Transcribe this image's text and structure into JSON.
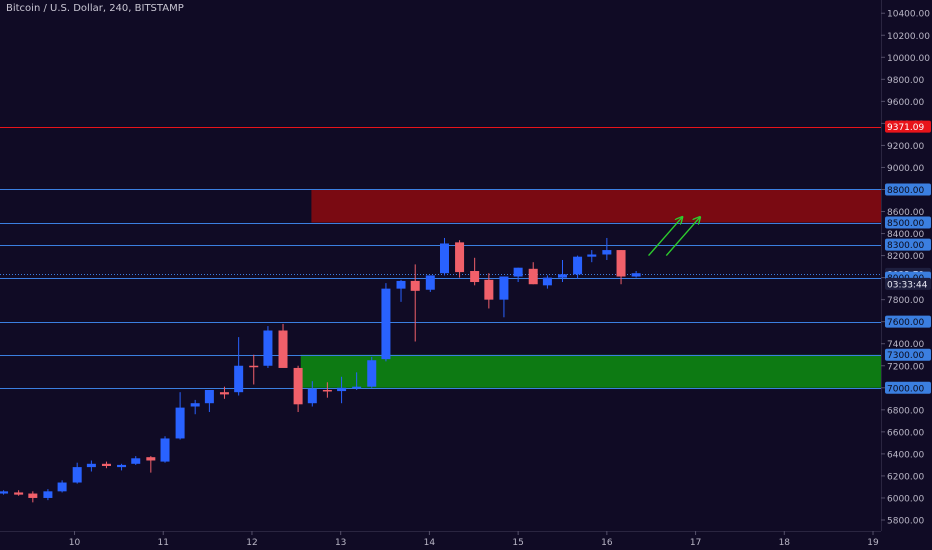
{
  "header": {
    "title": "Bitcoin / U.S. Dollar, 240, BITSTAMP"
  },
  "colors": {
    "background": "#100b25",
    "up": "#2962ff",
    "down": "#f0606a",
    "level_line": "#3b7fe0",
    "resistance_line": "#e8141a",
    "supply_zone": "#7a0a12",
    "demand_zone": "#0d7a13",
    "arrow": "#2dcc2d",
    "axis_text": "#b9b6c6"
  },
  "chart_data": {
    "type": "candlestick",
    "title": "Bitcoin / U.S. Dollar, 240, BITSTAMP",
    "x_axis": {
      "ticks": [
        10,
        11,
        12,
        13,
        14,
        15,
        16,
        17,
        18,
        19
      ],
      "range": [
        9.16,
        19.09
      ]
    },
    "y_axis": {
      "ticks": [
        5800,
        6000,
        6200,
        6400,
        6600,
        6800,
        7000,
        7200,
        7400,
        7600,
        7800,
        8000,
        8200,
        8400,
        8600,
        8800,
        9000,
        9200,
        9400,
        9600,
        9800,
        10000,
        10200,
        10400
      ],
      "tick_labels": [
        "5800.00",
        "6000.00",
        "6200.00",
        "6400.00",
        "6600.00",
        "6800.00",
        "7000.00",
        "7200.00",
        "7400.00",
        "7600.00",
        "7800.00",
        "8000.00",
        "8200.00",
        "8400.00",
        "8600.00",
        "8800.00",
        "9000.00",
        "9200.00",
        "9400.00",
        "9600.00",
        "9800.00",
        "10000.00",
        "10200.00",
        "10400.00"
      ],
      "range": [
        5700,
        10520
      ]
    },
    "candles": [
      {
        "t": 9.2,
        "o": 6040,
        "h": 6070,
        "l": 6030,
        "c": 6060
      },
      {
        "t": 9.37,
        "o": 6050,
        "h": 6070,
        "l": 6020,
        "c": 6030
      },
      {
        "t": 9.53,
        "o": 6040,
        "h": 6060,
        "l": 5960,
        "c": 6000
      },
      {
        "t": 9.7,
        "o": 6000,
        "h": 6080,
        "l": 5980,
        "c": 6060
      },
      {
        "t": 9.86,
        "o": 6060,
        "h": 6160,
        "l": 6050,
        "c": 6140
      },
      {
        "t": 10.03,
        "o": 6140,
        "h": 6320,
        "l": 6130,
        "c": 6280
      },
      {
        "t": 10.19,
        "o": 6280,
        "h": 6340,
        "l": 6240,
        "c": 6310
      },
      {
        "t": 10.36,
        "o": 6310,
        "h": 6330,
        "l": 6270,
        "c": 6290
      },
      {
        "t": 10.53,
        "o": 6280,
        "h": 6310,
        "l": 6250,
        "c": 6300
      },
      {
        "t": 10.69,
        "o": 6310,
        "h": 6380,
        "l": 6300,
        "c": 6360
      },
      {
        "t": 10.86,
        "o": 6370,
        "h": 6380,
        "l": 6230,
        "c": 6340
      },
      {
        "t": 11.02,
        "o": 6330,
        "h": 6560,
        "l": 6320,
        "c": 6540
      },
      {
        "t": 11.19,
        "o": 6540,
        "h": 6960,
        "l": 6530,
        "c": 6820
      },
      {
        "t": 11.36,
        "o": 6830,
        "h": 6890,
        "l": 6760,
        "c": 6860
      },
      {
        "t": 11.52,
        "o": 6860,
        "h": 6970,
        "l": 6780,
        "c": 6980
      },
      {
        "t": 11.69,
        "o": 6960,
        "h": 7010,
        "l": 6900,
        "c": 6940
      },
      {
        "t": 11.85,
        "o": 6960,
        "h": 7460,
        "l": 6930,
        "c": 7200
      },
      {
        "t": 12.02,
        "o": 7200,
        "h": 7300,
        "l": 7030,
        "c": 7190
      },
      {
        "t": 12.18,
        "o": 7200,
        "h": 7560,
        "l": 7180,
        "c": 7520
      },
      {
        "t": 12.35,
        "o": 7520,
        "h": 7580,
        "l": 7190,
        "c": 7180
      },
      {
        "t": 12.52,
        "o": 7180,
        "h": 7200,
        "l": 6780,
        "c": 6850
      },
      {
        "t": 12.68,
        "o": 6860,
        "h": 7060,
        "l": 6830,
        "c": 6990
      },
      {
        "t": 12.85,
        "o": 6980,
        "h": 7050,
        "l": 6910,
        "c": 6970
      },
      {
        "t": 13.01,
        "o": 6970,
        "h": 7100,
        "l": 6860,
        "c": 7000
      },
      {
        "t": 13.18,
        "o": 7000,
        "h": 7140,
        "l": 6980,
        "c": 7010
      },
      {
        "t": 13.35,
        "o": 7010,
        "h": 7280,
        "l": 7000,
        "c": 7250
      },
      {
        "t": 13.51,
        "o": 7260,
        "h": 7950,
        "l": 7240,
        "c": 7900
      },
      {
        "t": 13.68,
        "o": 7900,
        "h": 7980,
        "l": 7780,
        "c": 7970
      },
      {
        "t": 13.84,
        "o": 7970,
        "h": 8120,
        "l": 7420,
        "c": 7880
      },
      {
        "t": 14.01,
        "o": 7890,
        "h": 8010,
        "l": 7870,
        "c": 8020
      },
      {
        "t": 14.17,
        "o": 8040,
        "h": 8360,
        "l": 8020,
        "c": 8310
      },
      {
        "t": 14.34,
        "o": 8320,
        "h": 8340,
        "l": 8000,
        "c": 8050
      },
      {
        "t": 14.51,
        "o": 8060,
        "h": 8180,
        "l": 7930,
        "c": 7960
      },
      {
        "t": 14.67,
        "o": 7980,
        "h": 8040,
        "l": 7720,
        "c": 7800
      },
      {
        "t": 14.84,
        "o": 7800,
        "h": 8010,
        "l": 7640,
        "c": 8010
      },
      {
        "t": 15.0,
        "o": 8010,
        "h": 8090,
        "l": 7960,
        "c": 8090
      },
      {
        "t": 15.17,
        "o": 8080,
        "h": 8140,
        "l": 7940,
        "c": 7940
      },
      {
        "t": 15.33,
        "o": 7930,
        "h": 8020,
        "l": 7900,
        "c": 8000
      },
      {
        "t": 15.5,
        "o": 8000,
        "h": 8160,
        "l": 7960,
        "c": 8030
      },
      {
        "t": 15.67,
        "o": 8030,
        "h": 8200,
        "l": 7990,
        "c": 8190
      },
      {
        "t": 15.83,
        "o": 8190,
        "h": 8250,
        "l": 8140,
        "c": 8210
      },
      {
        "t": 16.0,
        "o": 8210,
        "h": 8360,
        "l": 8160,
        "c": 8250
      },
      {
        "t": 16.16,
        "o": 8250,
        "h": 8250,
        "l": 7940,
        "c": 8010
      },
      {
        "t": 16.33,
        "o": 8010,
        "h": 8060,
        "l": 8000,
        "c": 8040
      }
    ],
    "horizontal_lines": [
      {
        "value": 9371.09,
        "label": "9371.09",
        "color": "#e8141a"
      },
      {
        "value": 8800,
        "label": "8800.00",
        "color": "#3b7fe0"
      },
      {
        "value": 8500,
        "label": "8500.00",
        "color": "#3b7fe0"
      },
      {
        "value": 8300,
        "label": "8300.00",
        "color": "#3b7fe0"
      },
      {
        "value": 8033.79,
        "label": "8033.79",
        "color": "#3b7fe0",
        "dotted": true
      },
      {
        "value": 8000,
        "label": "8000.00",
        "color": "#3b7fe0"
      },
      {
        "value": 7600,
        "label": "7600.00",
        "color": "#3b7fe0"
      },
      {
        "value": 7300,
        "label": "7300.00",
        "color": "#3b7fe0"
      },
      {
        "value": 7000,
        "label": "7000.00",
        "color": "#3b7fe0"
      }
    ],
    "countdown": {
      "value": 8033.79,
      "label": "03:33:44"
    },
    "zones": [
      {
        "name": "supply-zone",
        "from": 12.67,
        "y0": 8500,
        "y1": 8800,
        "color": "#7a0a12"
      },
      {
        "name": "demand-zone",
        "from": 12.55,
        "y0": 7000,
        "y1": 7300,
        "color": "#0d7a13"
      }
    ],
    "annotations": [
      {
        "type": "arrow",
        "from": [
          16.47,
          8200
        ],
        "to": [
          16.85,
          8550
        ]
      },
      {
        "type": "arrow",
        "from": [
          16.67,
          8200
        ],
        "to": [
          17.05,
          8550
        ]
      }
    ]
  }
}
